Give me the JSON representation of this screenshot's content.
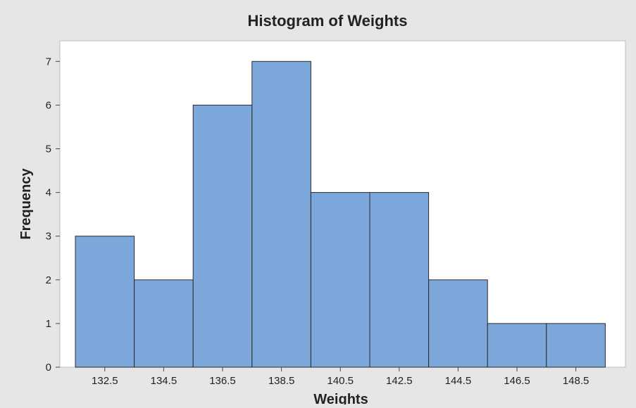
{
  "chart_data": {
    "type": "bar",
    "title": "Histogram of Weights",
    "xlabel": "Weights",
    "ylabel": "Frequency",
    "categories": [
      "132.5",
      "134.5",
      "136.5",
      "138.5",
      "140.5",
      "142.5",
      "144.5",
      "146.5",
      "148.5"
    ],
    "values": [
      3,
      2,
      6,
      7,
      4,
      4,
      2,
      1,
      1
    ],
    "yticks": [
      "0",
      "1",
      "2",
      "3",
      "4",
      "5",
      "6",
      "7"
    ],
    "ylim": [
      0,
      7.5
    ],
    "grid": false,
    "bar_color": "#7ba7db",
    "bar_edge_color": "#2b2b2b",
    "background_color": "#e6e6e6",
    "plot_background_color": "#ffffff"
  }
}
